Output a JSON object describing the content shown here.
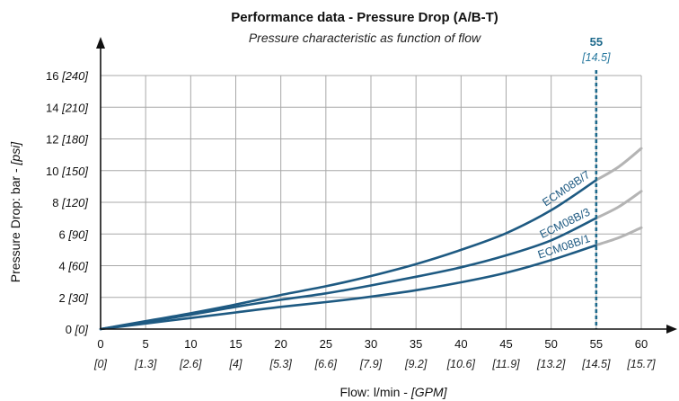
{
  "chart_data": {
    "type": "line",
    "title": "Performance data - Pressure Drop (A/B-T)",
    "subtitle": "Pressure characteristic as function of flow",
    "xlabel": {
      "main": "Flow: l/min - ",
      "secondary": "[GPM]"
    },
    "ylabel": {
      "main": "Pressure Drop: bar - ",
      "secondary": "[psi]"
    },
    "xlim": [
      0,
      60
    ],
    "ylim": [
      0,
      16
    ],
    "grid": true,
    "x_ticks": [
      {
        "value": 0,
        "label": "0",
        "sub": "[0]"
      },
      {
        "value": 5,
        "label": "5",
        "sub": "[1.3]"
      },
      {
        "value": 10,
        "label": "10",
        "sub": "[2.6]"
      },
      {
        "value": 15,
        "label": "15",
        "sub": "[4]"
      },
      {
        "value": 20,
        "label": "20",
        "sub": "[5.3]"
      },
      {
        "value": 25,
        "label": "25",
        "sub": "[6.6]"
      },
      {
        "value": 30,
        "label": "30",
        "sub": "[7.9]"
      },
      {
        "value": 35,
        "label": "35",
        "sub": "[9.2]"
      },
      {
        "value": 40,
        "label": "40",
        "sub": "[10.6]"
      },
      {
        "value": 45,
        "label": "45",
        "sub": "[11.9]"
      },
      {
        "value": 50,
        "label": "50",
        "sub": "[13.2]"
      },
      {
        "value": 55,
        "label": "55",
        "sub": "[14.5]"
      },
      {
        "value": 60,
        "label": "60",
        "sub": "[15.7]"
      }
    ],
    "y_ticks": [
      {
        "value": 0,
        "label": "0",
        "sub": "[0]"
      },
      {
        "value": 2,
        "label": "2",
        "sub": "[30]"
      },
      {
        "value": 4,
        "label": "4",
        "sub": "[60]"
      },
      {
        "value": 6,
        "label": "6",
        "sub": "[90]"
      },
      {
        "value": 8,
        "label": "8",
        "sub": "[120]"
      },
      {
        "value": 10,
        "label": "10",
        "sub": "[150]"
      },
      {
        "value": 12,
        "label": "12",
        "sub": "[180]"
      },
      {
        "value": 14,
        "label": "14",
        "sub": "[210]"
      },
      {
        "value": 16,
        "label": "16",
        "sub": "[240]"
      }
    ],
    "rated_flow": {
      "value": 55,
      "label": "55",
      "sub": "[14.5]"
    },
    "series": [
      {
        "name": "ECM08B/7",
        "x": [
          0,
          5,
          10,
          15,
          20,
          25,
          30,
          35,
          40,
          45,
          50,
          55
        ],
        "y": [
          0,
          0.5,
          1.0,
          1.55,
          2.15,
          2.7,
          3.35,
          4.1,
          5.0,
          6.05,
          7.5,
          9.4
        ],
        "extension": {
          "x": [
            55,
            60
          ],
          "y": [
            9.4,
            11.4
          ]
        }
      },
      {
        "name": "ECM08B/3",
        "x": [
          0,
          5,
          10,
          15,
          20,
          25,
          30,
          35,
          40,
          45,
          50,
          55
        ],
        "y": [
          0,
          0.45,
          0.9,
          1.4,
          1.85,
          2.25,
          2.75,
          3.3,
          3.9,
          4.65,
          5.6,
          7.0
        ],
        "extension": {
          "x": [
            55,
            60
          ],
          "y": [
            7.0,
            8.7
          ]
        }
      },
      {
        "name": "ECM08B/1",
        "x": [
          0,
          5,
          10,
          15,
          20,
          25,
          30,
          35,
          40,
          45,
          50,
          55
        ],
        "y": [
          0,
          0.35,
          0.7,
          1.05,
          1.4,
          1.7,
          2.05,
          2.45,
          2.95,
          3.55,
          4.35,
          5.3
        ],
        "extension": {
          "x": [
            55,
            60
          ],
          "y": [
            5.3,
            6.4
          ]
        }
      }
    ],
    "colors": {
      "series": "#1e5a82",
      "extension": "#b4b4b4",
      "grid": "#a8a8a8",
      "axis": "#111111",
      "marker": "#1e6a8c"
    }
  }
}
